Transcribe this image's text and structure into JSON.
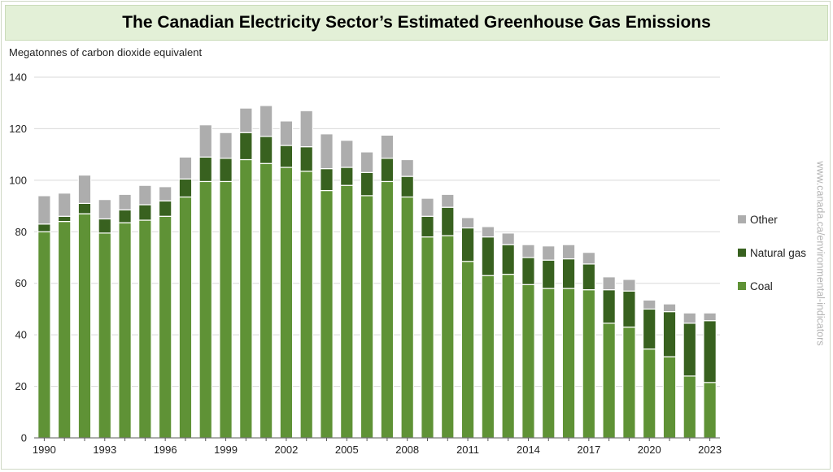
{
  "header": {
    "title": "The Canadian Electricity Sector’s Estimated Greenhouse Gas Emissions"
  },
  "watermark": "www.canada.ca/environmental-indicators",
  "colors": {
    "Coal": "#5f9236",
    "Natural gas": "#38611f",
    "Other": "#adadad",
    "grid": "#d9d9d9",
    "axis": "#595959"
  },
  "chart_data": {
    "type": "bar",
    "stacked": true,
    "ylabel": "Megatonnes of carbon dioxide equivalent",
    "xlabel": "",
    "ylim": [
      0,
      140
    ],
    "yticks": [
      0,
      20,
      40,
      60,
      80,
      100,
      120,
      140
    ],
    "xtick_labels": [
      "1990",
      "1993",
      "1996",
      "1999",
      "2002",
      "2005",
      "2008",
      "2011",
      "2014",
      "2017",
      "2020",
      "2023"
    ],
    "grid": true,
    "legend_position": "right",
    "categories": [
      1990,
      1991,
      1992,
      1993,
      1994,
      1995,
      1996,
      1997,
      1998,
      1999,
      2000,
      2001,
      2002,
      2003,
      2004,
      2005,
      2006,
      2007,
      2008,
      2009,
      2010,
      2011,
      2012,
      2013,
      2014,
      2015,
      2016,
      2017,
      2018,
      2019,
      2020,
      2021,
      2022,
      2023
    ],
    "series": [
      {
        "name": "Coal",
        "values": [
          80,
          84,
          87,
          79.5,
          83.5,
          84.5,
          86,
          93.5,
          99.5,
          99.5,
          108,
          106.5,
          105,
          103.5,
          96,
          98,
          94,
          99.5,
          93.5,
          78,
          78.5,
          68.5,
          63,
          63.5,
          59.5,
          58,
          58,
          57.5,
          44.5,
          43,
          34.5,
          31.5,
          24,
          21.5
        ]
      },
      {
        "name": "Natural gas",
        "values": [
          3,
          2,
          4,
          5.5,
          5,
          6,
          6,
          7,
          9.5,
          9,
          10.5,
          10.5,
          8.5,
          9.5,
          8.5,
          7,
          9,
          9,
          8,
          8,
          11,
          13,
          15,
          11.5,
          10.5,
          11,
          11.5,
          10,
          13,
          14,
          15.5,
          17.5,
          20.5,
          24
        ]
      },
      {
        "name": "Other",
        "values": [
          11,
          9,
          11,
          7.5,
          6,
          7.5,
          5.5,
          8.5,
          12.5,
          10,
          9.5,
          12,
          9.5,
          14,
          13.5,
          10.5,
          8,
          9,
          6.5,
          7,
          5,
          4,
          4,
          4.5,
          5,
          5.5,
          5.5,
          4.5,
          5,
          4.5,
          3.5,
          3,
          4,
          3
        ]
      }
    ]
  }
}
